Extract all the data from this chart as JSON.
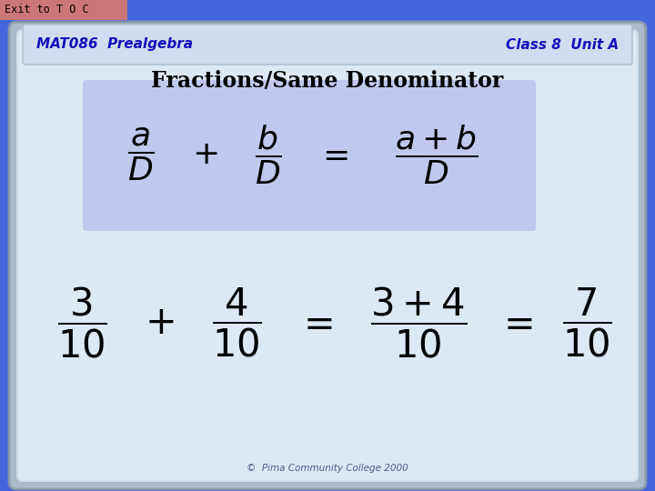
{
  "bg_color": "#4466dd",
  "exit_box_color": "#cc7777",
  "exit_text": "Exit to T O C",
  "header_left": "MAT086  Prealgebra",
  "header_right": "Class 8  Unit A",
  "title": "Fractions/Same Denominator",
  "footer": "©  Pima Community College 2000",
  "card_bg": "#dde8f5",
  "highlight_bg": "#c0c8ee",
  "header_color": "#1111bb",
  "title_color": "#000000",
  "formula_font": 26,
  "numeric_font": 30
}
